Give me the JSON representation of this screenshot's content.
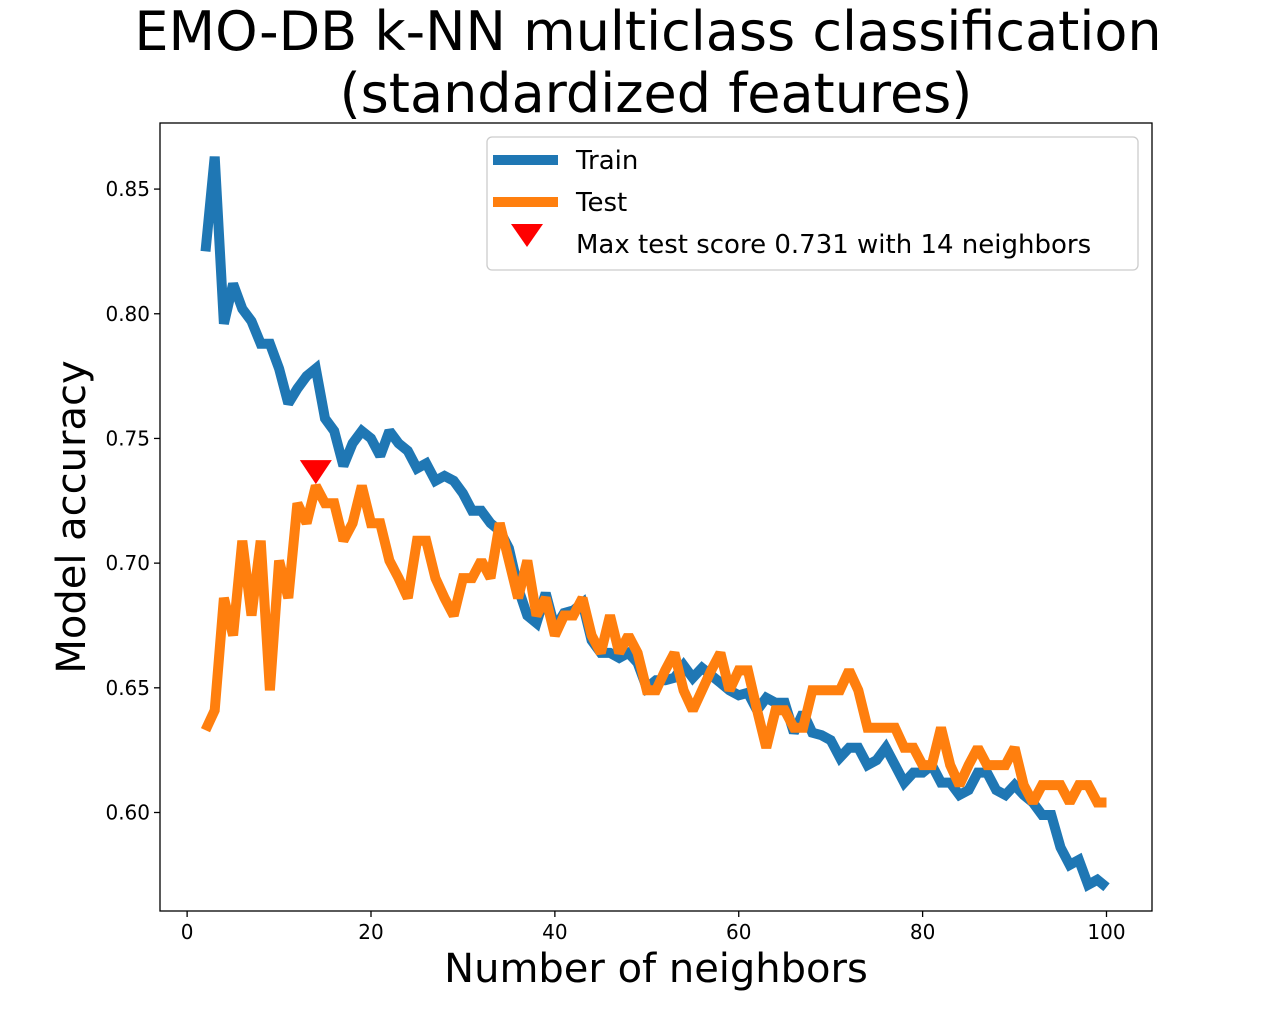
{
  "chart_data": {
    "type": "line",
    "title_lines": [
      "EMO-DB k-NN multiclass classification",
      "(standardized features)"
    ],
    "xlabel": "Number of neighbors",
    "ylabel": "Model accuracy",
    "xlim": [
      -2.95,
      104.95
    ],
    "ylim": [
      0.5605,
      0.8765
    ],
    "xticks": [
      0,
      20,
      40,
      60,
      80,
      100
    ],
    "yticks": [
      0.6,
      0.65,
      0.7,
      0.75,
      0.8,
      0.85
    ],
    "xtick_labels": [
      "0",
      "20",
      "40",
      "60",
      "80",
      "100"
    ],
    "ytick_labels": [
      "0.60",
      "0.65",
      "0.70",
      "0.75",
      "0.80",
      "0.85"
    ],
    "grid": false,
    "legend_position": "top-right",
    "x": [
      2,
      3,
      4,
      5,
      6,
      7,
      8,
      9,
      10,
      11,
      12,
      13,
      14,
      15,
      16,
      17,
      18,
      19,
      20,
      21,
      22,
      23,
      24,
      25,
      26,
      27,
      28,
      29,
      30,
      31,
      32,
      33,
      34,
      35,
      36,
      37,
      38,
      39,
      40,
      41,
      42,
      43,
      44,
      45,
      46,
      47,
      48,
      49,
      50,
      51,
      52,
      53,
      54,
      55,
      56,
      57,
      58,
      59,
      60,
      61,
      62,
      63,
      64,
      65,
      66,
      67,
      68,
      69,
      70,
      71,
      72,
      73,
      74,
      75,
      76,
      77,
      78,
      79,
      80,
      81,
      82,
      83,
      84,
      85,
      86,
      87,
      88,
      89,
      90,
      91,
      92,
      93,
      94,
      95,
      96,
      97,
      98,
      99,
      100
    ],
    "series": [
      {
        "name": "Train",
        "color": "#1f77b4",
        "values": [
          0.825,
          0.863,
          0.796,
          0.812,
          0.802,
          0.797,
          0.788,
          0.788,
          0.778,
          0.764,
          0.77,
          0.775,
          0.778,
          0.758,
          0.753,
          0.739,
          0.748,
          0.753,
          0.75,
          0.743,
          0.753,
          0.748,
          0.745,
          0.738,
          0.74,
          0.733,
          0.735,
          0.733,
          0.728,
          0.721,
          0.721,
          0.716,
          0.713,
          0.706,
          0.69,
          0.679,
          0.676,
          0.688,
          0.674,
          0.68,
          0.681,
          0.684,
          0.669,
          0.664,
          0.664,
          0.662,
          0.664,
          0.66,
          0.65,
          0.653,
          0.653,
          0.654,
          0.659,
          0.654,
          0.658,
          0.655,
          0.652,
          0.649,
          0.647,
          0.648,
          0.641,
          0.646,
          0.644,
          0.644,
          0.632,
          0.64,
          0.632,
          0.631,
          0.629,
          0.622,
          0.626,
          0.626,
          0.619,
          0.621,
          0.626,
          0.619,
          0.612,
          0.616,
          0.616,
          0.619,
          0.612,
          0.612,
          0.607,
          0.609,
          0.616,
          0.616,
          0.609,
          0.607,
          0.611,
          0.607,
          0.604,
          0.599,
          0.599,
          0.586,
          0.579,
          0.581,
          0.571,
          0.573,
          0.57
        ]
      },
      {
        "name": "Test",
        "color": "#ff7f0e",
        "values": [
          0.633,
          0.641,
          0.686,
          0.671,
          0.709,
          0.679,
          0.709,
          0.649,
          0.701,
          0.686,
          0.724,
          0.716,
          0.731,
          0.724,
          0.724,
          0.709,
          0.716,
          0.731,
          0.716,
          0.716,
          0.701,
          0.694,
          0.686,
          0.709,
          0.709,
          0.694,
          0.686,
          0.679,
          0.694,
          0.694,
          0.701,
          0.694,
          0.716,
          0.701,
          0.686,
          0.701,
          0.679,
          0.686,
          0.671,
          0.679,
          0.679,
          0.686,
          0.671,
          0.664,
          0.679,
          0.664,
          0.671,
          0.664,
          0.649,
          0.649,
          0.657,
          0.664,
          0.649,
          0.641,
          0.649,
          0.657,
          0.664,
          0.649,
          0.657,
          0.657,
          0.641,
          0.626,
          0.641,
          0.641,
          0.634,
          0.634,
          0.649,
          0.649,
          0.649,
          0.649,
          0.657,
          0.649,
          0.634,
          0.634,
          0.634,
          0.634,
          0.626,
          0.626,
          0.619,
          0.619,
          0.634,
          0.619,
          0.611,
          0.619,
          0.626,
          0.619,
          0.619,
          0.619,
          0.626,
          0.611,
          0.604,
          0.611,
          0.611,
          0.611,
          0.604,
          0.611,
          0.611,
          0.604,
          0.604
        ]
      }
    ],
    "marker": {
      "label": "Max test score 0.731 with 14 neighbors",
      "x": 14,
      "y": 0.7365,
      "color": "#ff0000",
      "shape": "triangle-down"
    }
  }
}
